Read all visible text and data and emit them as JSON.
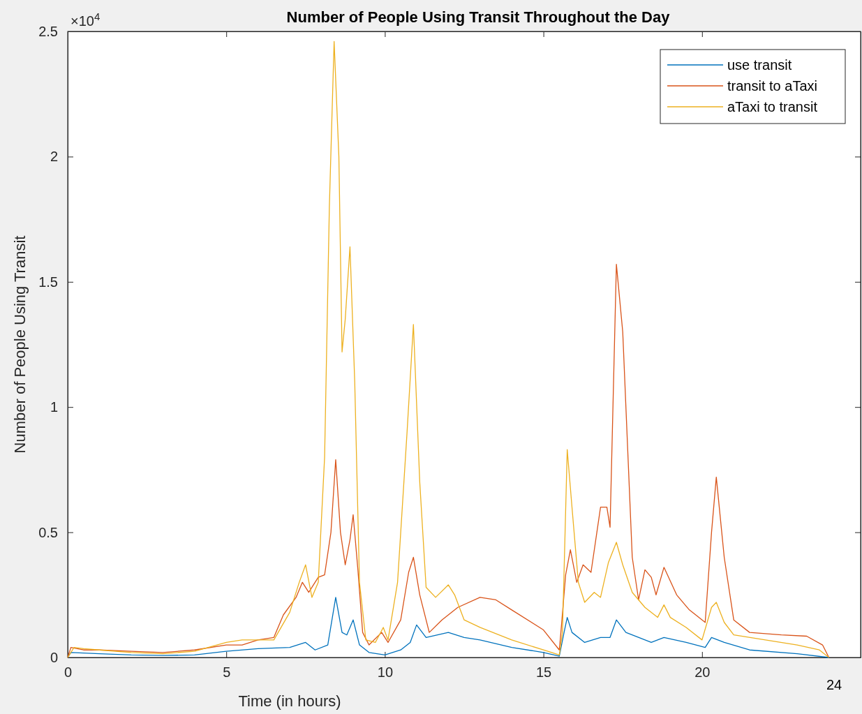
{
  "chart_data": {
    "type": "line",
    "title": "Number of People Using Transit Throughout the Day",
    "xlabel": "Time (in hours)",
    "ylabel": "Number of People Using Transit",
    "xlim": [
      0,
      25
    ],
    "xticks": [
      0,
      5,
      10,
      15,
      20
    ],
    "ylim": [
      0,
      2.5
    ],
    "yticks": [
      0,
      0.5,
      1,
      1.5,
      2,
      2.5
    ],
    "annotations": [
      "×10$^{4}$",
      "24"
    ],
    "grid": false,
    "legend": "top right",
    "line_style": "solid",
    "marker": "none",
    "series": [
      {
        "name": "use transit",
        "color": "#0072bd",
        "x": [
          0,
          0.1,
          1,
          2,
          3,
          4,
          5,
          6,
          7,
          7.5,
          7.8,
          8.2,
          8.45,
          8.65,
          8.8,
          9.0,
          9.2,
          9.5,
          10,
          10.5,
          10.8,
          11.0,
          11.3,
          12,
          12.5,
          13,
          14,
          15,
          15.5,
          15.65,
          15.75,
          15.9,
          16.3,
          16.8,
          17.1,
          17.3,
          17.6,
          18.4,
          18.8,
          19.5,
          20.1,
          20.3,
          20.7,
          21.5,
          23,
          24
        ],
        "values": [
          0,
          0.02,
          0.015,
          0.01,
          0.008,
          0.01,
          0.025,
          0.035,
          0.04,
          0.06,
          0.03,
          0.05,
          0.24,
          0.1,
          0.09,
          0.15,
          0.05,
          0.02,
          0.01,
          0.03,
          0.06,
          0.13,
          0.08,
          0.1,
          0.08,
          0.07,
          0.04,
          0.02,
          0.005,
          0.1,
          0.16,
          0.1,
          0.06,
          0.08,
          0.08,
          0.15,
          0.1,
          0.06,
          0.08,
          0.06,
          0.04,
          0.08,
          0.06,
          0.03,
          0.015,
          0
        ]
      },
      {
        "name": "transit to aTaxi",
        "color": "#d95319",
        "x": [
          0,
          0.1,
          0.5,
          1,
          2,
          3,
          4,
          5,
          5.5,
          6,
          6.5,
          6.8,
          7.2,
          7.4,
          7.6,
          7.9,
          8.1,
          8.3,
          8.45,
          8.6,
          8.75,
          8.9,
          9.0,
          9.15,
          9.3,
          9.5,
          9.9,
          10.1,
          10.5,
          10.75,
          10.9,
          11.1,
          11.4,
          11.8,
          12.3,
          13,
          13.5,
          14,
          15,
          15.5,
          15.55,
          15.7,
          15.85,
          16.05,
          16.25,
          16.5,
          16.8,
          17.0,
          17.1,
          17.3,
          17.5,
          17.8,
          18.0,
          18.2,
          18.4,
          18.55,
          18.8,
          19.2,
          19.6,
          20.1,
          20.3,
          20.45,
          20.7,
          21,
          21.5,
          22.5,
          23.3,
          23.8,
          24
        ],
        "values": [
          0,
          0.04,
          0.03,
          0.03,
          0.025,
          0.02,
          0.03,
          0.05,
          0.05,
          0.07,
          0.08,
          0.17,
          0.24,
          0.3,
          0.26,
          0.32,
          0.33,
          0.5,
          0.79,
          0.5,
          0.37,
          0.47,
          0.57,
          0.35,
          0.1,
          0.05,
          0.1,
          0.06,
          0.15,
          0.34,
          0.4,
          0.25,
          0.1,
          0.15,
          0.2,
          0.24,
          0.23,
          0.19,
          0.11,
          0.03,
          0.1,
          0.33,
          0.43,
          0.3,
          0.37,
          0.34,
          0.6,
          0.6,
          0.52,
          1.57,
          1.3,
          0.4,
          0.23,
          0.35,
          0.32,
          0.25,
          0.36,
          0.25,
          0.19,
          0.14,
          0.5,
          0.72,
          0.4,
          0.15,
          0.1,
          0.09,
          0.085,
          0.05,
          0
        ]
      },
      {
        "name": "aTaxi to transit",
        "color": "#edb120",
        "x": [
          0,
          0.2,
          0.5,
          1,
          2,
          3,
          4,
          5,
          5.5,
          6,
          6.5,
          7,
          7.3,
          7.5,
          7.7,
          7.9,
          8.1,
          8.25,
          8.4,
          8.55,
          8.65,
          8.75,
          8.9,
          9.05,
          9.2,
          9.4,
          9.7,
          9.95,
          10.1,
          10.4,
          10.7,
          10.9,
          11.1,
          11.3,
          11.6,
          12.0,
          12.2,
          12.5,
          13,
          14,
          15,
          15.5,
          15.6,
          15.75,
          15.9,
          16.1,
          16.3,
          16.6,
          16.8,
          17.05,
          17.3,
          17.5,
          17.8,
          18.2,
          18.6,
          18.8,
          19,
          19.5,
          20,
          20.3,
          20.45,
          20.7,
          21,
          22,
          23,
          23.7,
          24
        ],
        "values": [
          0,
          0.04,
          0.035,
          0.03,
          0.02,
          0.015,
          0.025,
          0.06,
          0.07,
          0.07,
          0.07,
          0.18,
          0.3,
          0.37,
          0.24,
          0.3,
          0.8,
          1.8,
          2.46,
          2,
          1.22,
          1.35,
          1.64,
          1.1,
          0.3,
          0.07,
          0.06,
          0.12,
          0.07,
          0.3,
          0.9,
          1.33,
          0.7,
          0.28,
          0.24,
          0.29,
          0.25,
          0.15,
          0.12,
          0.07,
          0.03,
          0.01,
          0.1,
          0.83,
          0.6,
          0.3,
          0.22,
          0.26,
          0.24,
          0.38,
          0.46,
          0.37,
          0.26,
          0.2,
          0.16,
          0.21,
          0.16,
          0.12,
          0.07,
          0.2,
          0.22,
          0.14,
          0.09,
          0.07,
          0.05,
          0.03,
          0
        ]
      }
    ]
  }
}
